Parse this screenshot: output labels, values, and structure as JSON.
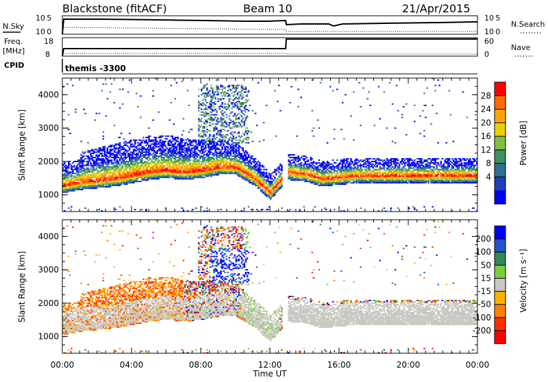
{
  "header": {
    "radar": "Blackstone (fitACF)",
    "beam": "Beam 10",
    "date": "21/Apr/2015"
  },
  "top_panels": {
    "nsky_label": "N.Sky",
    "nsearch_label": "N.Search",
    "freq_label": "Freq.",
    "freq_unit": "[MHz]",
    "nave_label": "Nave",
    "cpid_label": "CPID",
    "cpid_value": "themis -3300",
    "noise_left_ticks": [
      "10^5",
      "10^0"
    ],
    "noise_right_ticks": [
      "10^5",
      "10^0"
    ],
    "freq_left_ticks": [
      "18",
      "8"
    ],
    "nave_right_ticks": [
      "60",
      "0"
    ]
  },
  "chart_data": [
    {
      "type": "heatmap",
      "name": "power",
      "ylabel": "Slant Range [km]",
      "ylim": [
        500,
        4500
      ],
      "yticks": [
        "1000",
        "2000",
        "3000",
        "4000"
      ],
      "colorbar_label": "Power [dB]",
      "colorbar_ticks": [
        "4",
        "8",
        "12",
        "16",
        "20",
        "24",
        "28"
      ],
      "colorbar_colors": [
        "#0000ff",
        "#1f3fbf",
        "#2f6f8f",
        "#3d8f5f",
        "#7fbf3f",
        "#e8d000",
        "#ffa500",
        "#ff6a00",
        "#ff0000"
      ],
      "echo_band_center_km": [
        [
          0,
          1250
        ],
        [
          1,
          1350
        ],
        [
          2,
          1400
        ],
        [
          3,
          1450
        ],
        [
          4,
          1550
        ],
        [
          5,
          1650
        ],
        [
          6,
          1700
        ],
        [
          7,
          1650
        ],
        [
          8,
          1700
        ],
        [
          9,
          1800
        ],
        [
          10,
          1800
        ],
        [
          11,
          1500
        ],
        [
          12,
          1050
        ],
        [
          13,
          1650
        ],
        [
          14,
          1600
        ],
        [
          15,
          1450
        ],
        [
          16,
          1500
        ],
        [
          17,
          1550
        ],
        [
          18,
          1550
        ],
        [
          19,
          1550
        ],
        [
          20,
          1550
        ],
        [
          21,
          1550
        ],
        [
          22,
          1550
        ],
        [
          23,
          1550
        ],
        [
          24,
          1550
        ]
      ]
    },
    {
      "type": "heatmap",
      "name": "velocity",
      "ylabel": "Slant Range [km]",
      "xlabel": "Time UT",
      "ylim": [
        500,
        4500
      ],
      "yticks": [
        "1000",
        "2000",
        "3000",
        "4000"
      ],
      "xticks": [
        "00:00",
        "04:00",
        "08:00",
        "12:00",
        "16:00",
        "20:00",
        "00:00"
      ],
      "colorbar_label": "Velocity [m s⁻¹]",
      "colorbar_ticks": [
        "200",
        "100",
        "50",
        "15",
        "-15",
        "-50",
        "-100",
        "-200"
      ],
      "colorbar_colors": [
        "#0000ff",
        "#2255cc",
        "#2e8b57",
        "#7ccd3c",
        "#c8c8c0",
        "#ffb000",
        "#ff7f00",
        "#ff3000",
        "#ff0000"
      ],
      "ground_scatter_color": "#c8c8c0"
    }
  ]
}
